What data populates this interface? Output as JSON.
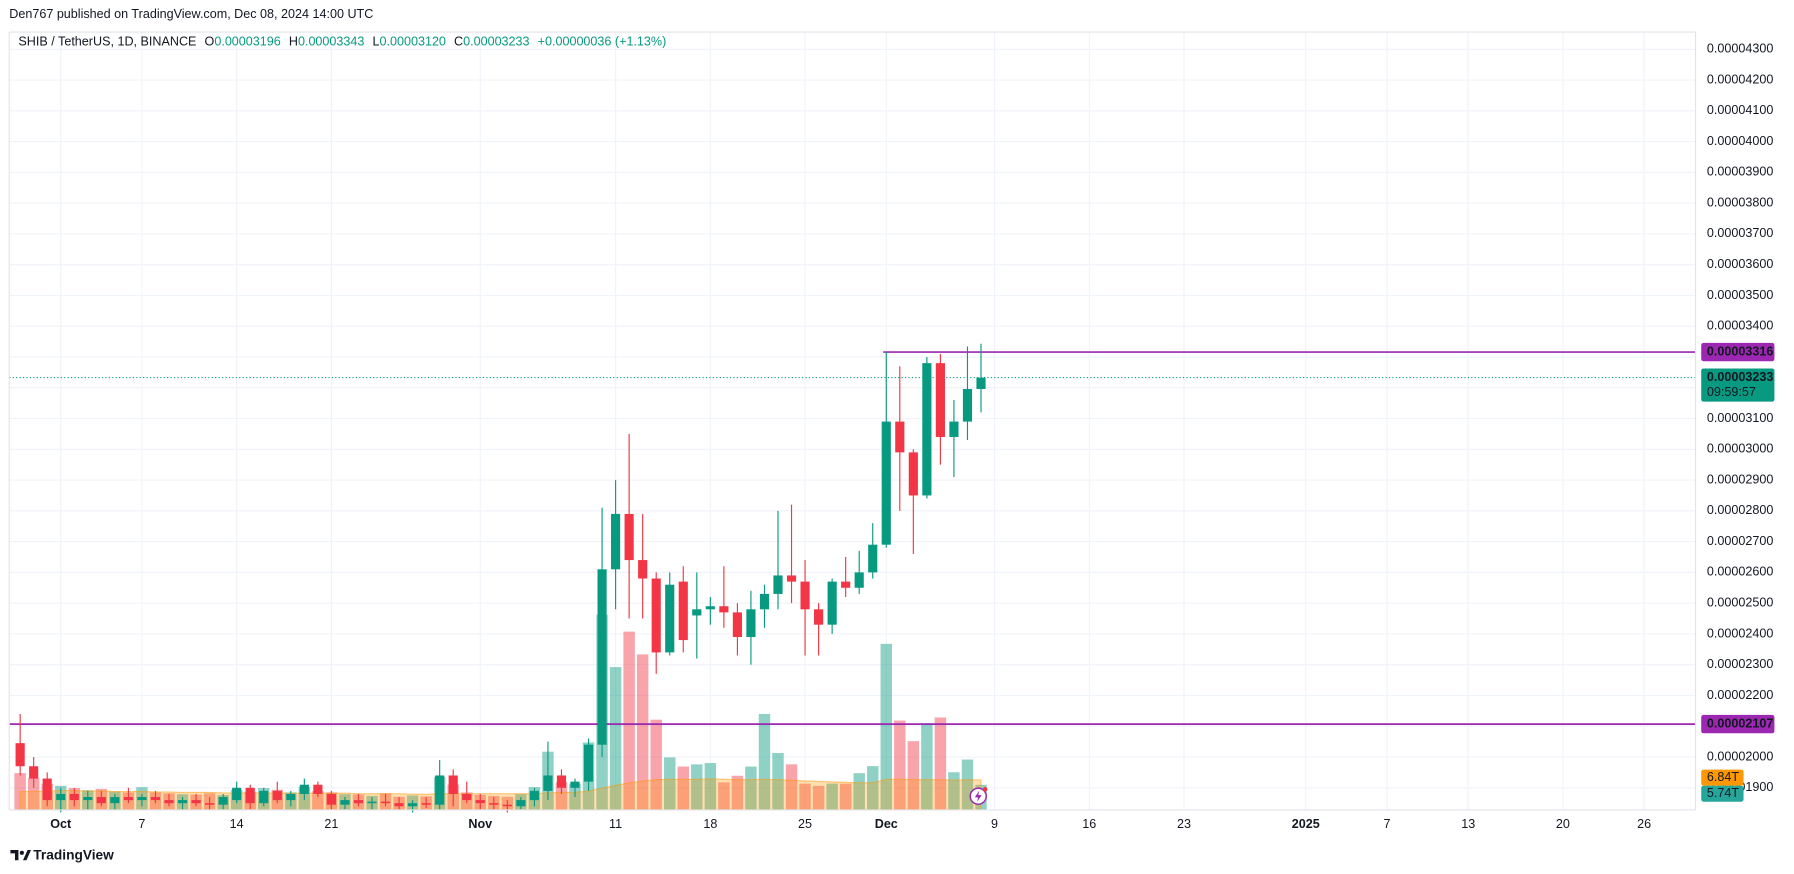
{
  "header": "Den767 published on TradingView.com, Dec 08, 2024 14:00 UTC",
  "footer_brand": "TradingView",
  "chart_data": {
    "type": "candlestick",
    "title": "SHIB / TetherUS, 1D, BINANCE",
    "legend": {
      "open_label": "O",
      "open": "0.00003196",
      "high_label": "H",
      "high": "0.00003343",
      "low_label": "L",
      "low": "0.00003120",
      "close_label": "C",
      "close": "0.00003233",
      "change": "+0.00000036 (+1.13%)"
    },
    "open": [
      2.045e-05,
      1.97e-05,
      1.93e-05,
      1.86e-05,
      1.88e-05,
      1.86e-05,
      1.87e-05,
      1.85e-05,
      1.87e-05,
      1.86e-05,
      1.87e-05,
      1.86e-05,
      1.85e-05,
      1.86e-05,
      1.85e-05,
      1.845e-05,
      1.86e-05,
      1.9e-05,
      1.85e-05,
      1.89e-05,
      1.86e-05,
      1.88e-05,
      1.91e-05,
      1.88e-05,
      1.845e-05,
      1.86e-05,
      1.85e-05,
      1.855e-05,
      1.85e-05,
      1.84e-05,
      1.85e-05,
      1.845e-05,
      1.94e-05,
      1.88e-05,
      1.86e-05,
      1.85e-05,
      1.845e-05,
      1.84e-05,
      1.86e-05,
      1.89e-05,
      1.94e-05,
      1.9e-05,
      1.92e-05,
      2.04e-05,
      2.61e-05,
      2.79e-05,
      2.64e-05,
      2.58e-05,
      2.34e-05,
      2.57e-05,
      2.46e-05,
      2.48e-05,
      2.49e-05,
      2.47e-05,
      2.39e-05,
      2.48e-05,
      2.53e-05,
      2.59e-05,
      2.57e-05,
      2.48e-05,
      2.43e-05,
      2.57e-05,
      2.55e-05,
      2.6e-05,
      2.69e-05,
      3.09e-05,
      2.99e-05,
      2.85e-05,
      3.28e-05,
      3.04e-05,
      3.09e-05,
      3.196e-05
    ],
    "high": [
      2.14e-05,
      2e-05,
      1.95e-05,
      1.9e-05,
      1.9e-05,
      1.89e-05,
      1.89e-05,
      1.88e-05,
      1.9e-05,
      1.88e-05,
      1.89e-05,
      1.88e-05,
      1.87e-05,
      1.88e-05,
      1.87e-05,
      1.88e-05,
      1.92e-05,
      1.91e-05,
      1.9e-05,
      1.92e-05,
      1.89e-05,
      1.93e-05,
      1.92e-05,
      1.89e-05,
      1.87e-05,
      1.88e-05,
      1.87e-05,
      1.88e-05,
      1.87e-05,
      1.86e-05,
      1.87e-05,
      1.99e-05,
      1.96e-05,
      1.92e-05,
      1.88e-05,
      1.87e-05,
      1.86e-05,
      1.87e-05,
      1.9e-05,
      2.05e-05,
      1.96e-05,
      1.93e-05,
      2.06e-05,
      2.81e-05,
      2.9e-05,
      3.05e-05,
      2.79e-05,
      2.6e-05,
      2.6e-05,
      2.62e-05,
      2.6e-05,
      2.52e-05,
      2.62e-05,
      2.5e-05,
      2.54e-05,
      2.56e-05,
      2.8e-05,
      2.82e-05,
      2.64e-05,
      2.5e-05,
      2.58e-05,
      2.65e-05,
      2.67e-05,
      2.76e-05,
      3.316e-05,
      3.27e-05,
      3e-05,
      3.3e-05,
      3.31e-05,
      3.16e-05,
      3.334e-05,
      3.343e-05
    ],
    "low": [
      1.94e-05,
      1.9e-05,
      1.84e-05,
      1.82e-05,
      1.84e-05,
      1.83e-05,
      1.84e-05,
      1.83e-05,
      1.85e-05,
      1.84e-05,
      1.85e-05,
      1.84e-05,
      1.83e-05,
      1.84e-05,
      1.83e-05,
      1.83e-05,
      1.85e-05,
      1.83e-05,
      1.84e-05,
      1.85e-05,
      1.84e-05,
      1.86e-05,
      1.87e-05,
      1.83e-05,
      1.83e-05,
      1.84e-05,
      1.83e-05,
      1.84e-05,
      1.83e-05,
      1.82e-05,
      1.835e-05,
      1.83e-05,
      1.84e-05,
      1.85e-05,
      1.83e-05,
      1.83e-05,
      1.82e-05,
      1.83e-05,
      1.84e-05,
      1.86e-05,
      1.88e-05,
      1.87e-05,
      1.89e-05,
      2e-05,
      2.48e-05,
      2.45e-05,
      2.45e-05,
      2.27e-05,
      2.33e-05,
      2.34e-05,
      2.32e-05,
      2.43e-05,
      2.42e-05,
      2.33e-05,
      2.3e-05,
      2.42e-05,
      2.48e-05,
      2.5e-05,
      2.33e-05,
      2.33e-05,
      2.4e-05,
      2.52e-05,
      2.53e-05,
      2.58e-05,
      2.68e-05,
      2.8e-05,
      2.66e-05,
      2.84e-05,
      2.95e-05,
      2.91e-05,
      3.03e-05,
      3.12e-05
    ],
    "close": [
      1.97e-05,
      1.93e-05,
      1.86e-05,
      1.88e-05,
      1.86e-05,
      1.87e-05,
      1.85e-05,
      1.87e-05,
      1.86e-05,
      1.87e-05,
      1.86e-05,
      1.85e-05,
      1.86e-05,
      1.85e-05,
      1.845e-05,
      1.87e-05,
      1.9e-05,
      1.85e-05,
      1.89e-05,
      1.86e-05,
      1.88e-05,
      1.91e-05,
      1.88e-05,
      1.845e-05,
      1.86e-05,
      1.85e-05,
      1.855e-05,
      1.85e-05,
      1.84e-05,
      1.85e-05,
      1.845e-05,
      1.94e-05,
      1.88e-05,
      1.86e-05,
      1.85e-05,
      1.845e-05,
      1.84e-05,
      1.86e-05,
      1.89e-05,
      1.94e-05,
      1.9e-05,
      1.92e-05,
      2.04e-05,
      2.61e-05,
      2.79e-05,
      2.64e-05,
      2.58e-05,
      2.34e-05,
      2.56e-05,
      2.38e-05,
      2.48e-05,
      2.49e-05,
      2.47e-05,
      2.39e-05,
      2.48e-05,
      2.53e-05,
      2.59e-05,
      2.57e-05,
      2.48e-05,
      2.43e-05,
      2.57e-05,
      2.55e-05,
      2.6e-05,
      2.69e-05,
      3.09e-05,
      2.99e-05,
      2.85e-05,
      3.28e-05,
      3.04e-05,
      3.09e-05,
      3.196e-05,
      3.233e-05
    ],
    "up_color": "#089981",
    "down_color": "#f23645",
    "volume": {
      "values": [
        8.4,
        7.3,
        6.0,
        5.5,
        5.0,
        4.5,
        4.8,
        4.2,
        4.0,
        5.2,
        4.0,
        3.8,
        3.6,
        3.5,
        3.8,
        3.4,
        4.6,
        4.2,
        5.0,
        4.6,
        4.0,
        5.2,
        4.3,
        4.0,
        3.6,
        3.5,
        3.2,
        3.8,
        3.0,
        3.3,
        3.1,
        7.5,
        5.8,
        4.0,
        3.4,
        3.2,
        3.0,
        3.6,
        5.2,
        13.3,
        6.3,
        6.0,
        15.4,
        44.6,
        32.6,
        40.7,
        35.5,
        20.6,
        12.0,
        9.9,
        10.4,
        10.7,
        6.3,
        7.8,
        9.9,
        21.9,
        13.0,
        10.4,
        6.0,
        5.5,
        6.0,
        6.0,
        8.4,
        10.0,
        37.9,
        20.4,
        15.7,
        19.8,
        21.1,
        8.6,
        11.5,
        5.74
      ],
      "last_label": "5.74T"
    },
    "volume_ma": {
      "values": [
        4.2,
        4.2,
        4.3,
        4.4,
        4.4,
        4.3,
        4.3,
        4.2,
        4.2,
        4.2,
        4.1,
        4.1,
        4.0,
        4.0,
        4.0,
        3.9,
        3.9,
        3.9,
        3.9,
        3.8,
        3.8,
        3.8,
        3.8,
        3.8,
        3.8,
        3.7,
        3.7,
        3.7,
        3.7,
        3.6,
        3.6,
        3.7,
        3.7,
        3.7,
        3.7,
        3.7,
        3.7,
        3.7,
        3.7,
        3.9,
        4.0,
        4.0,
        4.3,
        5.0,
        5.6,
        6.2,
        6.6,
        6.9,
        7.0,
        7.0,
        7.0,
        7.1,
        7.0,
        6.9,
        6.9,
        7.0,
        6.9,
        6.8,
        6.6,
        6.5,
        6.4,
        6.3,
        6.2,
        6.2,
        7.0,
        7.0,
        6.9,
        6.9,
        6.9,
        6.8,
        6.9,
        6.84
      ],
      "last_label": "6.84T",
      "color": "#ff9800"
    },
    "ylim": [
      1.828e-05,
      4.356e-05
    ],
    "yticks": [
      {
        "value": 1.9e-05,
        "label": "0.00001900"
      },
      {
        "value": 2e-05,
        "label": "0.00002000"
      },
      {
        "value": 2.1e-05,
        "label": "0.00002100"
      },
      {
        "value": 2.2e-05,
        "label": "0.00002200"
      },
      {
        "value": 2.3e-05,
        "label": "0.00002300"
      },
      {
        "value": 2.4e-05,
        "label": "0.00002400"
      },
      {
        "value": 2.5e-05,
        "label": "0.00002500"
      },
      {
        "value": 2.6e-05,
        "label": "0.00002600"
      },
      {
        "value": 2.7e-05,
        "label": "0.00002700"
      },
      {
        "value": 2.8e-05,
        "label": "0.00002800"
      },
      {
        "value": 2.9e-05,
        "label": "0.00002900"
      },
      {
        "value": 3e-05,
        "label": "0.00003000"
      },
      {
        "value": 3.1e-05,
        "label": "0.00003100"
      },
      {
        "value": 3.2e-05,
        "label": "0.00003200"
      },
      {
        "value": 3.3e-05,
        "label": "0.00003300"
      },
      {
        "value": 3.4e-05,
        "label": "0.00003400"
      },
      {
        "value": 3.5e-05,
        "label": "0.00003500"
      },
      {
        "value": 3.6e-05,
        "label": "0.00003600"
      },
      {
        "value": 3.7e-05,
        "label": "0.00003700"
      },
      {
        "value": 3.8e-05,
        "label": "0.00003800"
      },
      {
        "value": 3.9e-05,
        "label": "0.00003900"
      },
      {
        "value": 4e-05,
        "label": "0.00004000"
      },
      {
        "value": 4.1e-05,
        "label": "0.00004100"
      },
      {
        "value": 4.2e-05,
        "label": "0.00004200"
      },
      {
        "value": 4.3e-05,
        "label": "0.00004300"
      }
    ],
    "xticks": [
      {
        "value": 3,
        "label": "Oct"
      },
      {
        "value": 9,
        "label": "7"
      },
      {
        "value": 16,
        "label": "14"
      },
      {
        "value": 23,
        "label": "21"
      },
      {
        "value": 34,
        "label": "Nov"
      },
      {
        "value": 44,
        "label": "11"
      },
      {
        "value": 51,
        "label": "18"
      },
      {
        "value": 58,
        "label": "25"
      },
      {
        "value": 64,
        "label": "Dec"
      },
      {
        "value": 72,
        "label": "9"
      },
      {
        "value": 79,
        "label": "16"
      },
      {
        "value": 86,
        "label": "23"
      },
      {
        "value": 95,
        "label": "2025"
      },
      {
        "value": 101,
        "label": "7"
      },
      {
        "value": 107,
        "label": "13"
      },
      {
        "value": 114,
        "label": "20"
      },
      {
        "value": 120,
        "label": "26"
      }
    ],
    "grid": true,
    "price_lines": [
      {
        "value": 3.316e-05,
        "label": "0.00003316",
        "color": "#9c27b0"
      },
      {
        "value": 2.107e-05,
        "label": "0.00002107",
        "color": "#9c27b0"
      }
    ],
    "last_price": {
      "label": "0.00003233",
      "countdown": "09:59:57"
    }
  }
}
